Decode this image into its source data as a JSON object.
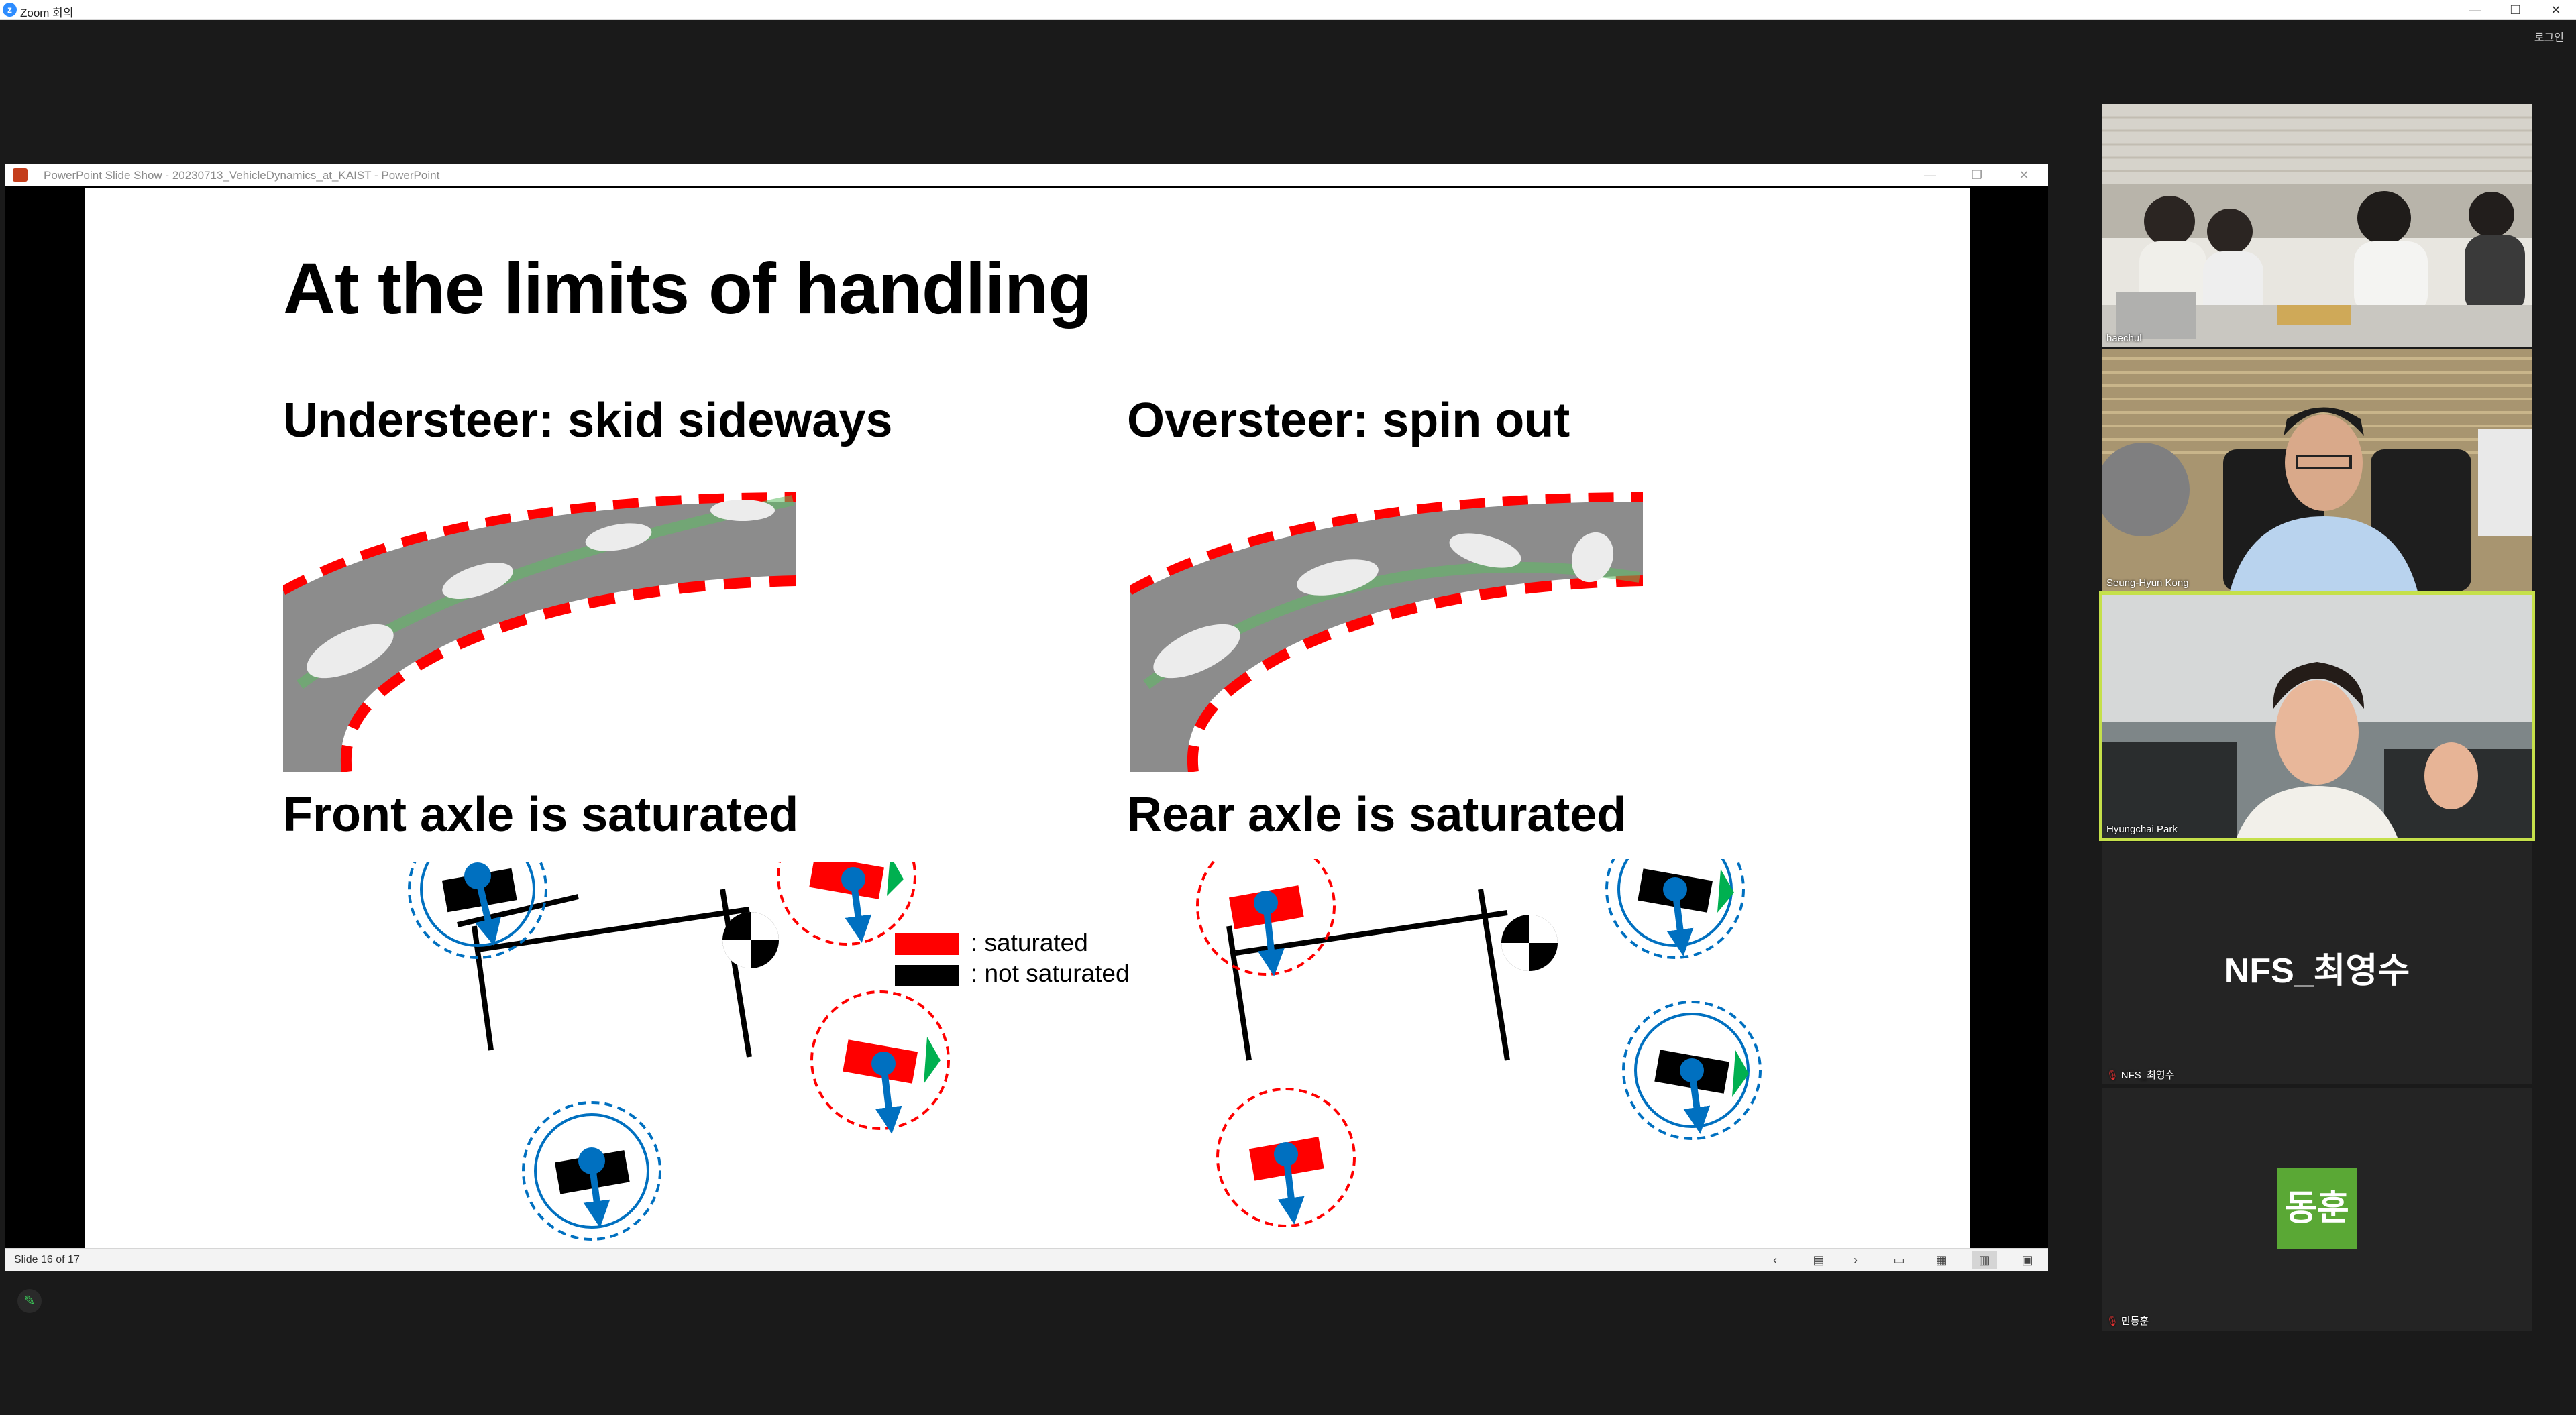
{
  "app": {
    "window_title": "Zoom 회의",
    "login_label": "로그인",
    "controls": {
      "minimize": "—",
      "restore": "❐",
      "close": "✕"
    }
  },
  "ppt": {
    "window_title": "PowerPoint Slide Show  -  20230713_VehicleDynamics_at_KAIST  -  PowerPoint",
    "controls": {
      "minimize": "—",
      "restore": "❐",
      "close": "✕"
    },
    "status": {
      "slide_counter": "Slide 16 of 17",
      "prev": "‹",
      "next": "›",
      "views": [
        "normal-view",
        "slide-sorter-view",
        "reading-view",
        "slideshow-view"
      ]
    }
  },
  "slide": {
    "title": "At the limits of handling",
    "left_heading": "Understeer: skid sideways",
    "right_heading": "Oversteer: spin out",
    "left_caption": "Front axle is saturated",
    "right_caption": "Rear axle is saturated",
    "legend": {
      "saturated": ": saturated",
      "not_saturated": ": not saturated",
      "saturated_color": "#ff0000",
      "not_saturated_color": "#000000"
    },
    "colors": {
      "force_arrow": "#0070c0",
      "slip_arrow": "#00b050",
      "curb_red": "#ff0000",
      "road": "#8c8c8c"
    }
  },
  "participants": [
    {
      "name": "haechul",
      "type": "video"
    },
    {
      "name": "Seung-Hyun Kong",
      "type": "video"
    },
    {
      "name": "Hyungchai Park",
      "type": "video",
      "active_speaker": true
    },
    {
      "name": "NFS_최영수",
      "display": "NFS_최영수",
      "type": "name",
      "muted": true
    },
    {
      "name": "민동훈",
      "display": "동훈",
      "type": "avatar",
      "muted": true,
      "avatar_color": "#5aa835"
    }
  ]
}
